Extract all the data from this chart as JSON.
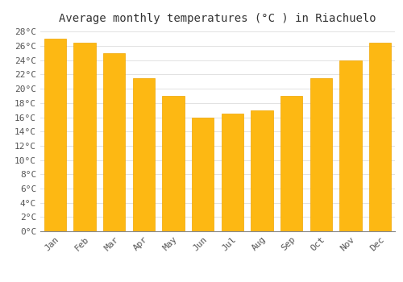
{
  "title": "Average monthly temperatures (°C ) in Riachuelo",
  "months": [
    "Jan",
    "Feb",
    "Mar",
    "Apr",
    "May",
    "Jun",
    "Jul",
    "Aug",
    "Sep",
    "Oct",
    "Nov",
    "Dec"
  ],
  "temperatures": [
    27.0,
    26.5,
    25.0,
    21.5,
    19.0,
    16.0,
    16.5,
    17.0,
    19.0,
    21.5,
    24.0,
    26.5
  ],
  "bar_color": "#FDB813",
  "bar_edge_color": "#F0A500",
  "background_color": "#FFFFFF",
  "grid_color": "#DDDDDD",
  "ylim": [
    0,
    28
  ],
  "ytick_step": 2,
  "title_fontsize": 10,
  "tick_fontsize": 8,
  "font_family": "monospace"
}
